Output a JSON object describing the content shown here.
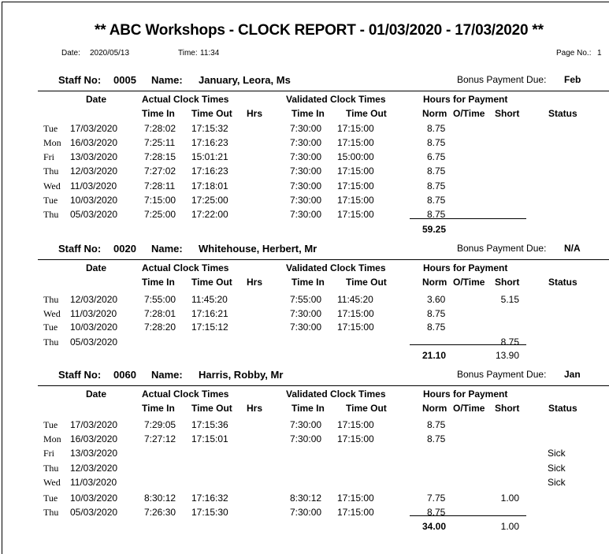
{
  "report": {
    "title": "**  ABC Workshops - CLOCK REPORT - 01/03/2020 - 17/03/2020  **",
    "date_label": "Date:",
    "date": "2020/05/13",
    "time_label": "Time:",
    "time": "11:34",
    "page_label": "Page No.:",
    "page": "1"
  },
  "labels": {
    "staff_no": "Staff No:",
    "name": "Name:",
    "bonus": "Bonus Payment Due:",
    "date": "Date",
    "actual": "Actual Clock Times",
    "validated": "Validated Clock Times",
    "hours": "Hours for Payment",
    "time_in": "Time In",
    "time_out": "Time Out",
    "hrs": "Hrs",
    "norm": "Norm",
    "otime": "O/Time",
    "short": "Short",
    "status": "Status"
  },
  "staff": [
    {
      "no": "0005",
      "name": "January, Leora, Ms",
      "bonus": "Feb",
      "total_norm": "59.25",
      "total_short": "",
      "rows": [
        [
          "Tue",
          "17/03/2020",
          "7:28:02",
          "17:15:32",
          "",
          "7:30:00",
          "17:15:00",
          "8.75",
          "",
          "",
          ""
        ],
        [
          "Mon",
          "16/03/2020",
          "7:25:11",
          "17:16:23",
          "",
          "7:30:00",
          "17:15:00",
          "8.75",
          "",
          "",
          ""
        ],
        [
          "Fri",
          "13/03/2020",
          "7:28:15",
          "15:01:21",
          "",
          "7:30:00",
          "15:00:00",
          "6.75",
          "",
          "",
          ""
        ],
        [
          "Thu",
          "12/03/2020",
          "7:27:02",
          "17:16:23",
          "",
          "7:30:00",
          "17:15:00",
          "8.75",
          "",
          "",
          ""
        ],
        [
          "Wed",
          "11/03/2020",
          "7:28:11",
          "17:18:01",
          "",
          "7:30:00",
          "17:15:00",
          "8.75",
          "",
          "",
          ""
        ],
        [
          "Tue",
          "10/03/2020",
          "7:15:00",
          "17:25:00",
          "",
          "7:30:00",
          "17:15:00",
          "8.75",
          "",
          "",
          ""
        ],
        [
          "Thu",
          "05/03/2020",
          "7:25:00",
          "17:22:00",
          "",
          "7:30:00",
          "17:15:00",
          "8.75",
          "",
          "",
          ""
        ]
      ]
    },
    {
      "no": "0020",
      "name": "Whitehouse, Herbert, Mr",
      "bonus": "N/A",
      "total_norm": "21.10",
      "total_short": "13.90",
      "rows": [
        [
          "Thu",
          "12/03/2020",
          "7:55:00",
          "11:45:20",
          "",
          "7:55:00",
          "11:45:20",
          "3.60",
          "",
          "5.15",
          ""
        ],
        [
          "Wed",
          "11/03/2020",
          "7:28:01",
          "17:16:21",
          "",
          "7:30:00",
          "17:15:00",
          "8.75",
          "",
          "",
          ""
        ],
        [
          "Tue",
          "10/03/2020",
          "7:28:20",
          "17:15:12",
          "",
          "7:30:00",
          "17:15:00",
          "8.75",
          "",
          "",
          ""
        ],
        [
          "Thu",
          "05/03/2020",
          "",
          "",
          "",
          "",
          "",
          "",
          "",
          "8.75",
          ""
        ]
      ]
    },
    {
      "no": "0060",
      "name": "Harris, Robby, Mr",
      "bonus": "Jan",
      "total_norm": "34.00",
      "total_short": "1.00",
      "rows": [
        [
          "Tue",
          "17/03/2020",
          "7:29:05",
          "17:15:36",
          "",
          "7:30:00",
          "17:15:00",
          "8.75",
          "",
          "",
          ""
        ],
        [
          "Mon",
          "16/03/2020",
          "7:27:12",
          "17:15:01",
          "",
          "7:30:00",
          "17:15:00",
          "8.75",
          "",
          "",
          ""
        ],
        [
          "Fri",
          "13/03/2020",
          "",
          "",
          "",
          "",
          "",
          "",
          "",
          "",
          "Sick"
        ],
        [
          "Thu",
          "12/03/2020",
          "",
          "",
          "",
          "",
          "",
          "",
          "",
          "",
          "Sick"
        ],
        [
          "Wed",
          "11/03/2020",
          "",
          "",
          "",
          "",
          "",
          "",
          "",
          "",
          "Sick"
        ],
        [
          "Tue",
          "10/03/2020",
          "8:30:12",
          "17:16:32",
          "",
          "8:30:12",
          "17:15:00",
          "7.75",
          "",
          "1.00",
          ""
        ],
        [
          "Thu",
          "05/03/2020",
          "7:26:30",
          "17:15:30",
          "",
          "7:30:00",
          "17:15:00",
          "8.75",
          "",
          "",
          ""
        ]
      ]
    }
  ]
}
